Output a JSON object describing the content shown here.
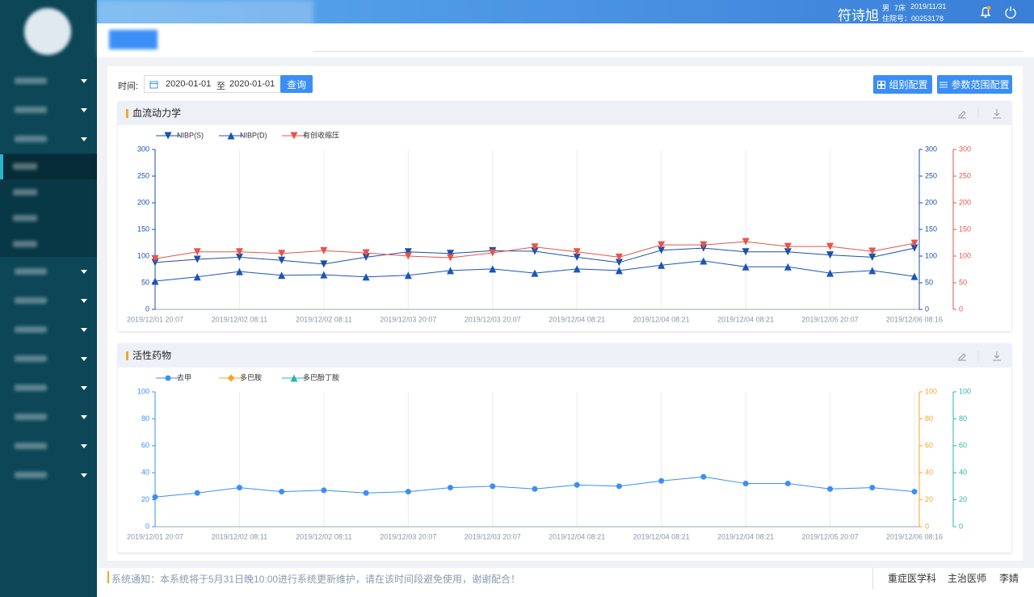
{
  "header": {
    "patient_name": "符诗旭",
    "gender": "男",
    "bed": "7床",
    "date": "2019/11/31",
    "admission_label": "住院号：",
    "admission_no": "00253178"
  },
  "filter": {
    "label": "时间:",
    "start": "2020-01-01",
    "separator": "至",
    "end": "2020-01-01",
    "query": "查询",
    "group_config": "组别配置",
    "range_config": "参数范围配置"
  },
  "chart_data": [
    {
      "type": "line",
      "title": "血流动力学",
      "grid": "x",
      "categories": [
        "2019/12/01 20:07",
        null,
        "2019/12/02 08:11",
        null,
        "2019/12/02 08:11",
        null,
        "2019/12/03 20:07",
        null,
        "2019/12/03 20:07",
        null,
        "2019/12/04 08:21",
        null,
        "2019/12/04 08:21",
        null,
        "2019/12/04 08:21",
        null,
        "2019/12/05 20:07",
        null,
        "2019/12/06 08:16"
      ],
      "ylim": [
        0,
        300
      ],
      "yticks": [
        0,
        50,
        100,
        150,
        200,
        250,
        300
      ],
      "y_color": "#1a4fa8",
      "y2lim": [
        0,
        300
      ],
      "y2ticks": [
        0,
        50,
        100,
        150,
        200,
        250,
        300
      ],
      "y2_color": "#1a4fa8",
      "y3lim": [
        0,
        300
      ],
      "y3ticks": [
        0,
        50,
        100,
        150,
        200,
        250,
        300
      ],
      "y3_color": "#e8534a",
      "series": [
        {
          "name": "NIBP(S)",
          "color": "#1a4fa8",
          "marker": "triangle-down",
          "axis": "y",
          "values": [
            88,
            94,
            98,
            92,
            85,
            98,
            108,
            105,
            110,
            109,
            98,
            88,
            111,
            115,
            108,
            108,
            102,
            98,
            115
          ]
        },
        {
          "name": "NIBP(D)",
          "color": "#1a55b8",
          "marker": "triangle-up",
          "axis": "y",
          "values": [
            53,
            61,
            71,
            64,
            65,
            61,
            64,
            73,
            76,
            68,
            76,
            73,
            83,
            91,
            80,
            80,
            68,
            73,
            62
          ]
        },
        {
          "name": "有创收缩压",
          "color": "#e8534a",
          "marker": "triangle-down",
          "axis": "y3",
          "values": [
            95,
            108,
            108,
            105,
            110,
            106,
            100,
            97,
            106,
            117,
            108,
            98,
            121,
            121,
            127,
            118,
            118,
            109,
            124
          ]
        }
      ]
    },
    {
      "type": "line",
      "title": "活性药物",
      "grid": "x",
      "categories": [
        "2019/12/01 20:07",
        null,
        "2019/12/02 08:11",
        null,
        "2019/12/02 08:11",
        null,
        "2019/12/03 20:07",
        null,
        "2019/12/03 20:07",
        null,
        "2019/12/04 08:21",
        null,
        "2019/12/04 08:21",
        null,
        "2019/12/04 08:21",
        null,
        "2019/12/05 20:07",
        null,
        "2019/12/06 08:16"
      ],
      "ylim": [
        0,
        100
      ],
      "yticks": [
        0,
        20,
        40,
        60,
        80,
        100
      ],
      "y_color": "#3a8ef6",
      "y2lim": [
        0,
        100
      ],
      "y2ticks": [
        0,
        20,
        40,
        60,
        80,
        100
      ],
      "y2_color": "#f5a623",
      "y3lim": [
        0,
        100
      ],
      "y3ticks": [
        0,
        20,
        40,
        60,
        80,
        100
      ],
      "y3_color": "#2bb5a8",
      "series": [
        {
          "name": "去甲",
          "color": "#3a8ef6",
          "marker": "circle",
          "axis": "y",
          "values": [
            22,
            25,
            29,
            26,
            27,
            25,
            26,
            29,
            30,
            28,
            31,
            30,
            34,
            37,
            32,
            32,
            28,
            29,
            26
          ]
        },
        {
          "name": "多巴胺",
          "color": "#f5a623",
          "marker": "diamond",
          "axis": "y2",
          "values": [
            null,
            null,
            null,
            null,
            null,
            null,
            null,
            null,
            null,
            null,
            null,
            null,
            null,
            null,
            null,
            null,
            null,
            null,
            null
          ]
        },
        {
          "name": "多巴酚丁胺",
          "color": "#2bb5a8",
          "marker": "triangle-up",
          "axis": "y3",
          "values": [
            null,
            null,
            null,
            null,
            null,
            null,
            null,
            null,
            null,
            null,
            null,
            null,
            null,
            null,
            null,
            null,
            null,
            null,
            null
          ]
        }
      ]
    }
  ],
  "footer": {
    "notice": "系统通知：本系统将于5月31日晚10:00进行系统更新维护，请在该时间段避免使用，谢谢配合！",
    "department": "重症医学科",
    "role": "主治医师",
    "doctor": "李婧"
  }
}
